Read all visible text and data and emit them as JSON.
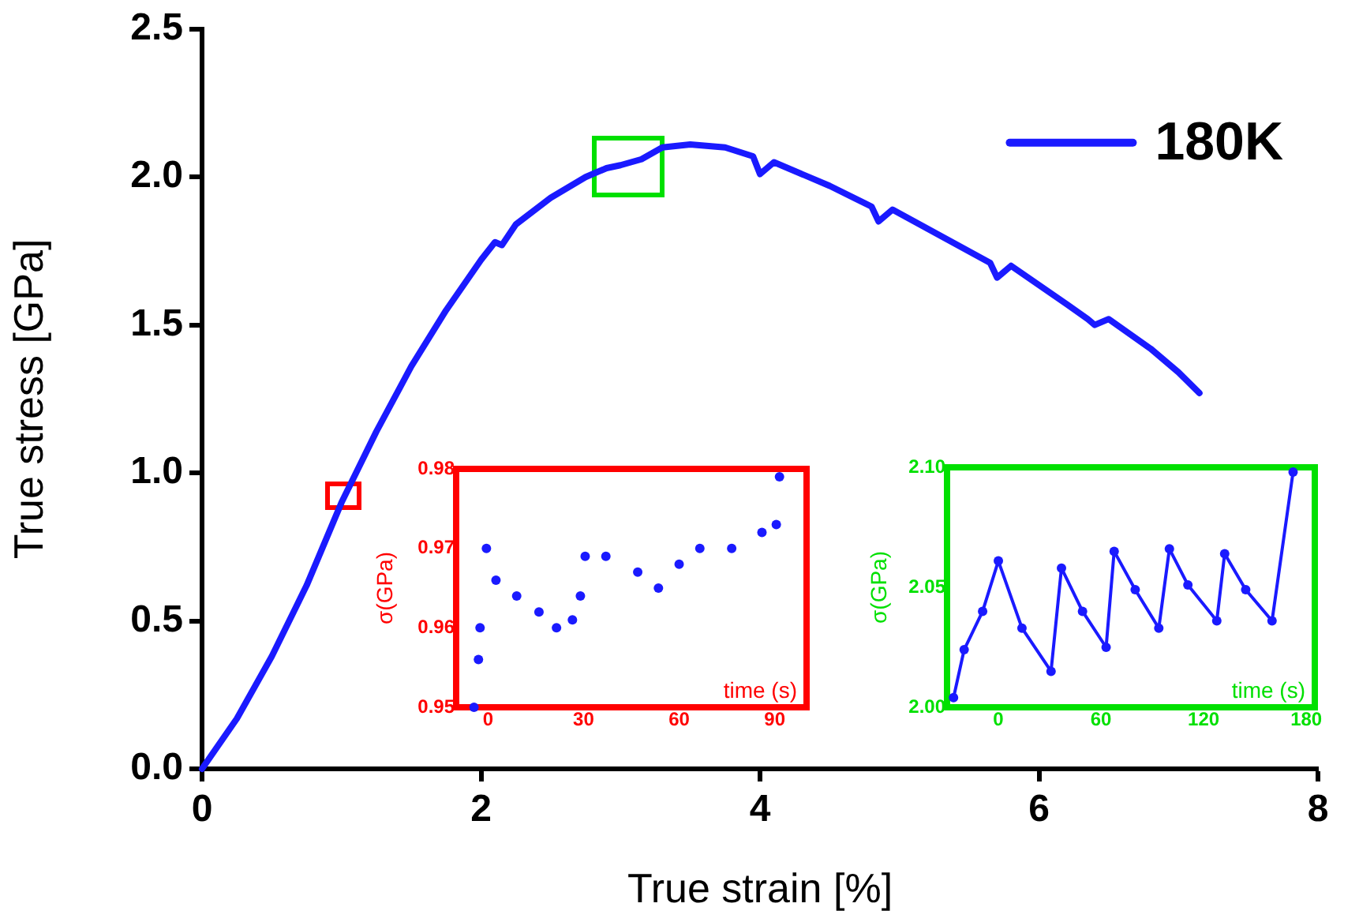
{
  "chart_data": [
    {
      "type": "line",
      "xlabel": "True strain [%]",
      "ylabel": "True stress [GPa]",
      "xlim": [
        0,
        8
      ],
      "xticks": [
        0,
        2,
        4,
        6,
        8
      ],
      "ylim": [
        0,
        2.5
      ],
      "yticks": [
        {
          "value": 0,
          "label": "0.0"
        },
        {
          "value": 0.5,
          "label": "0.5"
        },
        {
          "value": 1,
          "label": "1.0"
        },
        {
          "value": 1.5,
          "label": "1.5"
        },
        {
          "value": 2,
          "label": "2.0"
        },
        {
          "value": 2.5,
          "label": "2.5"
        }
      ],
      "legend": "top right",
      "marker": "none",
      "grid": false,
      "series": [
        {
          "name": "180K",
          "color": "#1a1aff",
          "x": [
            0,
            0.25,
            0.5,
            0.75,
            1.0,
            1.25,
            1.5,
            1.75,
            2.0,
            2.1,
            2.15,
            2.25,
            2.5,
            2.75,
            2.9,
            3.0,
            3.15,
            3.3,
            3.5,
            3.75,
            3.95,
            4.0,
            4.1,
            4.5,
            4.8,
            4.85,
            4.95,
            5.3,
            5.65,
            5.7,
            5.8,
            6.2,
            6.35,
            6.4,
            6.5,
            6.8,
            7.0,
            7.15
          ],
          "values": [
            0,
            0.17,
            0.38,
            0.62,
            0.9,
            1.14,
            1.36,
            1.55,
            1.72,
            1.78,
            1.77,
            1.84,
            1.93,
            2.0,
            2.03,
            2.04,
            2.06,
            2.1,
            2.11,
            2.1,
            2.07,
            2.01,
            2.05,
            1.97,
            1.9,
            1.85,
            1.89,
            1.8,
            1.71,
            1.66,
            1.7,
            1.57,
            1.52,
            1.5,
            1.52,
            1.42,
            1.34,
            1.27
          ]
        }
      ]
    },
    {
      "type": "scatter",
      "xlabel": "time (s)",
      "ylabel": "σ(GPa)",
      "xlim": [
        -10,
        100
      ],
      "xticks": [
        0,
        30,
        60,
        90
      ],
      "ylim": [
        0.95,
        0.98
      ],
      "yticks": [
        0.95,
        0.96,
        0.97,
        0.98
      ],
      "marker": "circle",
      "color": "#1a1aff",
      "x": [
        -4.4,
        -3,
        -2.5,
        -0.5,
        2.5,
        9,
        16,
        21.5,
        26.5,
        29,
        30.5,
        37,
        47,
        53.5,
        60,
        66.5,
        76.5,
        86,
        90.5,
        91.5
      ],
      "values": [
        0.95,
        0.956,
        0.96,
        0.97,
        0.966,
        0.964,
        0.962,
        0.96,
        0.961,
        0.964,
        0.969,
        0.969,
        0.967,
        0.965,
        0.968,
        0.97,
        0.97,
        0.972,
        0.973,
        0.979
      ]
    },
    {
      "type": "line",
      "xlabel": "time (s)",
      "ylabel": "σ(GPa)",
      "xlim": [
        -30,
        185
      ],
      "xticks": [
        0,
        60,
        120,
        180
      ],
      "ylim": [
        2.0,
        2.1
      ],
      "yticks": [
        {
          "value": 2.0,
          "label": "2.00"
        },
        {
          "value": 2.05,
          "label": "2.05"
        },
        {
          "value": 2.1,
          "label": "2.10"
        }
      ],
      "marker": "circle",
      "color": "#1a1aff",
      "x": [
        -26.2,
        -20,
        -9.2,
        0,
        13.8,
        30.8,
        36.9,
        49.2,
        63,
        67.7,
        80,
        93.8,
        100,
        110.8,
        127.7,
        132.3,
        144.6,
        160,
        172.3
      ],
      "values": [
        2.004,
        2.024,
        2.04,
        2.061,
        2.033,
        2.015,
        2.058,
        2.04,
        2.025,
        2.065,
        2.049,
        2.033,
        2.066,
        2.051,
        2.036,
        2.064,
        2.049,
        2.036,
        2.098
      ]
    }
  ]
}
